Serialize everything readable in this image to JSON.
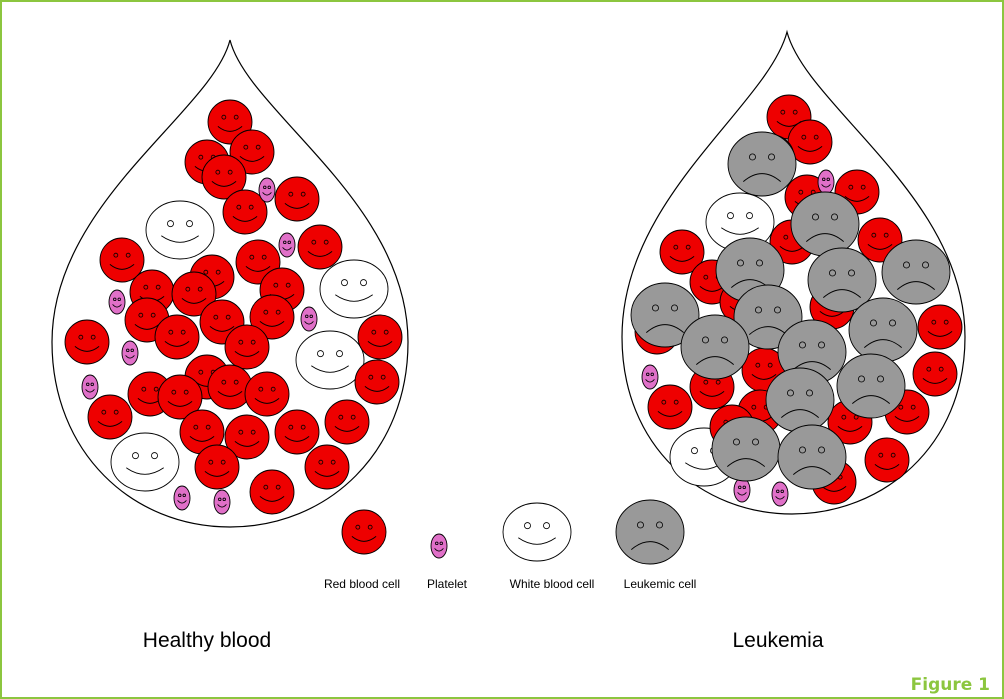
{
  "diagram": {
    "panels": [
      {
        "label": "Healthy blood"
      },
      {
        "label": "Leukemia"
      }
    ],
    "legend": [
      {
        "label": "Red blood cell"
      },
      {
        "label": "Platelet"
      },
      {
        "label": "White blood cell"
      },
      {
        "label": "Leukemic cell"
      }
    ]
  },
  "caption": "Figure 1"
}
